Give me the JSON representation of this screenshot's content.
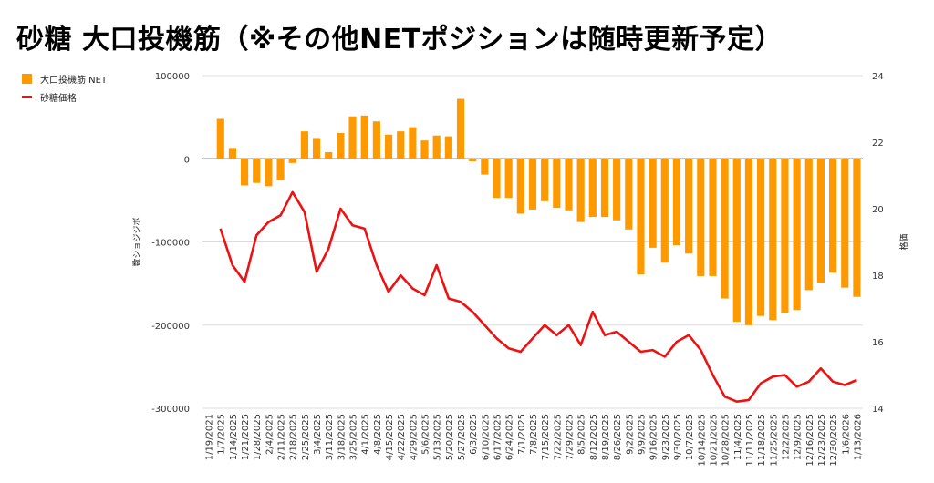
{
  "title": "砂糖 大口投機筋（※その他NETポジションは随時更新予定）",
  "legend": [
    {
      "label": "大口投機筋  NET",
      "color": "#ff9900"
    },
    {
      "label": "砂糖価格",
      "color": "#ee1111"
    }
  ],
  "chart_data": {
    "type": "bar",
    "title": "砂糖 大口投機筋（※その他NETポジションは随時更新予定）",
    "categories": [
      "1/19/2021",
      "1/7/2025",
      "1/14/2025",
      "1/21/2025",
      "1/28/2025",
      "2/4/2025",
      "2/11/2025",
      "2/18/2025",
      "2/25/2025",
      "3/4/2025",
      "3/11/2025",
      "3/18/2025",
      "3/25/2025",
      "4/1/2025",
      "4/8/2025",
      "4/15/2025",
      "4/22/2025",
      "4/29/2025",
      "5/6/2025",
      "5/13/2025",
      "5/20/2025",
      "5/27/2025",
      "6/3/2025",
      "6/10/2025",
      "6/17/2025",
      "6/24/2025",
      "7/1/2025",
      "7/8/2025",
      "7/15/2025",
      "7/22/2025",
      "7/29/2025",
      "8/5/2025",
      "8/12/2025",
      "8/19/2025",
      "8/26/2025",
      "9/2/2025",
      "9/9/2025",
      "9/16/2025",
      "9/23/2025",
      "9/30/2025",
      "10/7/2025",
      "10/14/2025",
      "10/21/2025",
      "10/28/2025",
      "11/4/2025",
      "11/11/2025",
      "11/18/2025",
      "11/25/2025",
      "12/2/2025",
      "12/9/2025",
      "12/16/2025",
      "12/23/2025",
      "12/30/2025",
      "1/6/2026",
      "1/13/2026"
    ],
    "series": [
      {
        "name": "大口投機筋  NET",
        "type": "bar",
        "axis": "left",
        "color": "#ff9900",
        "values": [
          null,
          48000,
          13000,
          -32000,
          -29000,
          -33000,
          -26000,
          -5000,
          33000,
          25000,
          8000,
          31000,
          51000,
          52000,
          45000,
          29000,
          33000,
          38000,
          22000,
          28000,
          27000,
          72000,
          -3000,
          -19000,
          -47000,
          -47000,
          -66000,
          -61000,
          -51000,
          -59000,
          -62000,
          -76000,
          -70000,
          -70000,
          -74000,
          -85000,
          -139000,
          -107000,
          -125000,
          -104000,
          -114000,
          -141000,
          -141000,
          -168000,
          -196000,
          -200000,
          -189000,
          -194000,
          -185000,
          -182000,
          -158000,
          -149000,
          -137000,
          -155000,
          -166000
        ]
      },
      {
        "name": "砂糖価格",
        "type": "line",
        "axis": "right",
        "color": "#ee1111",
        "values": [
          null,
          19.4,
          18.3,
          17.8,
          19.2,
          19.6,
          19.8,
          20.5,
          19.9,
          18.1,
          18.8,
          20.0,
          19.5,
          19.4,
          18.3,
          17.5,
          18.0,
          17.6,
          17.4,
          18.3,
          17.3,
          17.2,
          16.9,
          16.5,
          16.1,
          15.8,
          15.7,
          16.1,
          16.5,
          16.2,
          16.5,
          15.9,
          16.9,
          16.2,
          16.3,
          16.0,
          15.7,
          15.75,
          15.55,
          16.0,
          16.2,
          15.75,
          15.0,
          14.35,
          14.2,
          14.25,
          14.75,
          14.95,
          15.0,
          14.65,
          14.8,
          15.2,
          14.8,
          14.7,
          14.85
        ]
      }
    ],
    "yaxis_left": {
      "title": "数ショジジボ",
      "min": -300000,
      "max": 100000,
      "ticks": [
        "100000",
        "0",
        "-100000",
        "-200000",
        "-300000"
      ]
    },
    "yaxis_right": {
      "title": "格価",
      "min": 14,
      "max": 24,
      "ticks": [
        "24",
        "22",
        "20",
        "18",
        "16",
        "14"
      ]
    },
    "grid": true,
    "legend_position": "top-left"
  }
}
